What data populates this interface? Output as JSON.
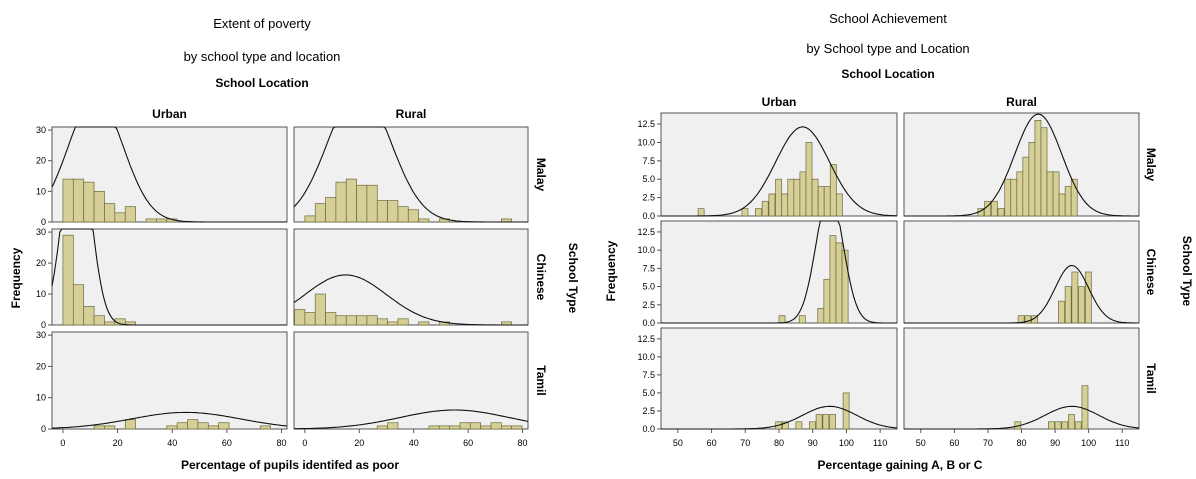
{
  "chart_data": [
    {
      "type": "histogram",
      "title_lines": [
        "Extent of poverty",
        "by school type and location"
      ],
      "column_header": "School Location",
      "row_header": "School Type",
      "columns": [
        "Urban",
        "Rural"
      ],
      "rows": [
        "Malay",
        "Chinese",
        "Tamil"
      ],
      "xlabel": "Percentage of pupils identifed as poor",
      "ylabel": "Frequency",
      "xlim": [
        -4,
        82
      ],
      "ylim": [
        0,
        31
      ],
      "xticks": [
        0,
        20,
        40,
        60,
        80
      ],
      "yticks": [
        0,
        10,
        20,
        30
      ],
      "bin_width": 3.8,
      "series": [
        {
          "row": "Malay",
          "col": "Urban",
          "bins": [
            [
              0,
              14
            ],
            [
              3.8,
              14
            ],
            [
              7.6,
              13
            ],
            [
              11.4,
              10
            ],
            [
              15.2,
              6
            ],
            [
              19,
              3
            ],
            [
              22.8,
              5
            ],
            [
              30.4,
              1
            ],
            [
              34.2,
              1
            ],
            [
              38,
              1
            ]
          ],
          "curve": {
            "mean": 12,
            "sd": 10,
            "n": 270
          }
        },
        {
          "row": "Malay",
          "col": "Rural",
          "bins": [
            [
              0,
              2
            ],
            [
              3.8,
              6
            ],
            [
              7.6,
              8
            ],
            [
              11.4,
              13
            ],
            [
              15.2,
              14
            ],
            [
              19,
              12
            ],
            [
              22.8,
              12
            ],
            [
              26.6,
              7
            ],
            [
              30.4,
              7
            ],
            [
              34.2,
              5
            ],
            [
              38,
              4
            ],
            [
              41.8,
              1
            ],
            [
              49.4,
              1
            ],
            [
              72.2,
              1
            ]
          ],
          "curve": {
            "mean": 20,
            "sd": 11.5,
            "n": 330
          }
        },
        {
          "row": "Chinese",
          "col": "Urban",
          "bins": [
            [
              0,
              29
            ],
            [
              3.8,
              13
            ],
            [
              7.6,
              6
            ],
            [
              11.4,
              3
            ],
            [
              15.2,
              1
            ],
            [
              19,
              2
            ],
            [
              22.8,
              1
            ]
          ],
          "curve": {
            "mean": 5,
            "sd": 5,
            "n": 210
          }
        },
        {
          "row": "Chinese",
          "col": "Rural",
          "bins": [
            [
              -3.8,
              5
            ],
            [
              0,
              4
            ],
            [
              3.8,
              10
            ],
            [
              7.6,
              4
            ],
            [
              11.4,
              3
            ],
            [
              15.2,
              3
            ],
            [
              19,
              3
            ],
            [
              22.8,
              3
            ],
            [
              26.6,
              2
            ],
            [
              30.4,
              1
            ],
            [
              34.2,
              2
            ],
            [
              41.8,
              1
            ],
            [
              49.4,
              1
            ],
            [
              72.2,
              1
            ]
          ],
          "curve": {
            "mean": 15,
            "sd": 15,
            "n": 160
          }
        },
        {
          "row": "Tamil",
          "col": "Urban",
          "bins": [
            [
              11.4,
              1
            ],
            [
              15.2,
              1
            ],
            [
              22.8,
              3
            ],
            [
              38,
              1
            ],
            [
              41.8,
              2
            ],
            [
              45.6,
              3
            ],
            [
              49.4,
              2
            ],
            [
              53.2,
              1
            ],
            [
              57,
              2
            ],
            [
              72.2,
              1
            ]
          ],
          "curve": {
            "mean": 45,
            "sd": 20,
            "n": 70
          }
        },
        {
          "row": "Tamil",
          "col": "Rural",
          "bins": [
            [
              26.6,
              1
            ],
            [
              30.4,
              2
            ],
            [
              45.6,
              1
            ],
            [
              49.4,
              1
            ],
            [
              53.2,
              1
            ],
            [
              57,
              2
            ],
            [
              60.8,
              2
            ],
            [
              64.6,
              1
            ],
            [
              68.4,
              2
            ],
            [
              72.2,
              1
            ],
            [
              76,
              1
            ]
          ],
          "curve": {
            "mean": 55,
            "sd": 20,
            "n": 80
          }
        }
      ]
    },
    {
      "type": "histogram",
      "title_lines": [
        "School Achievement",
        "by School type and Location"
      ],
      "column_header": "School Location",
      "row_header": "School Type",
      "columns": [
        "Urban",
        "Rural"
      ],
      "rows": [
        "Malay",
        "Chinese",
        "Tamil"
      ],
      "xlabel": "Percentage gaining A, B or C",
      "ylabel": "Frequency",
      "xlim": [
        45,
        115
      ],
      "ylim": [
        0,
        14
      ],
      "xticks": [
        50,
        60,
        70,
        80,
        90,
        100,
        110
      ],
      "yticks": [
        0.0,
        2.5,
        5.0,
        7.5,
        10.0,
        12.5
      ],
      "bin_width": 1.8,
      "series": [
        {
          "row": "Malay",
          "col": "Urban",
          "bins": [
            [
              56,
              1
            ],
            [
              69,
              1
            ],
            [
              73,
              1
            ],
            [
              75,
              2
            ],
            [
              77,
              3
            ],
            [
              79,
              5
            ],
            [
              80.8,
              3
            ],
            [
              82.6,
              5
            ],
            [
              84.4,
              5
            ],
            [
              86.2,
              6
            ],
            [
              88,
              10
            ],
            [
              89.8,
              5
            ],
            [
              91.6,
              4
            ],
            [
              93.4,
              4
            ],
            [
              95.2,
              7
            ],
            [
              97,
              3
            ]
          ],
          "curve": {
            "mean": 87,
            "sd": 8,
            "n": 135
          }
        },
        {
          "row": "Malay",
          "col": "Rural",
          "bins": [
            [
              67,
              1
            ],
            [
              69,
              2
            ],
            [
              71,
              2
            ],
            [
              73,
              1
            ],
            [
              75,
              5
            ],
            [
              76.8,
              5
            ],
            [
              78.6,
              6
            ],
            [
              80.4,
              8
            ],
            [
              82.2,
              10
            ],
            [
              84,
              13
            ],
            [
              85.8,
              12
            ],
            [
              87.6,
              6
            ],
            [
              89.4,
              6
            ],
            [
              91.2,
              3
            ],
            [
              93,
              4
            ],
            [
              94.8,
              5
            ]
          ],
          "curve": {
            "mean": 85,
            "sd": 7,
            "n": 135
          }
        },
        {
          "row": "Chinese",
          "col": "Urban",
          "bins": [
            [
              80,
              1
            ],
            [
              86,
              1
            ],
            [
              91.5,
              2
            ],
            [
              93.3,
              6
            ],
            [
              95.1,
              12
            ],
            [
              96.9,
              11
            ],
            [
              98.7,
              10
            ]
          ],
          "curve": {
            "mean": 95,
            "sd": 4,
            "n": 100
          }
        },
        {
          "row": "Chinese",
          "col": "Rural",
          "bins": [
            [
              79,
              1
            ],
            [
              81,
              1
            ],
            [
              83,
              1
            ],
            [
              91,
              3
            ],
            [
              93,
              5
            ],
            [
              95,
              7
            ],
            [
              97,
              5
            ],
            [
              99,
              7
            ]
          ],
          "curve": {
            "mean": 95,
            "sd": 5,
            "n": 55
          }
        },
        {
          "row": "Tamil",
          "col": "Urban",
          "bins": [
            [
              79,
              1
            ],
            [
              81,
              1
            ],
            [
              85,
              1
            ],
            [
              89,
              1
            ],
            [
              91,
              2
            ],
            [
              93,
              2
            ],
            [
              95,
              2
            ],
            [
              99,
              5
            ]
          ],
          "curve": {
            "mean": 95,
            "sd": 8,
            "n": 35
          }
        },
        {
          "row": "Tamil",
          "col": "Rural",
          "bins": [
            [
              78,
              1
            ],
            [
              88,
              1
            ],
            [
              90,
              1
            ],
            [
              92,
              1
            ],
            [
              94,
              2
            ],
            [
              96,
              1
            ],
            [
              98,
              6
            ]
          ],
          "curve": {
            "mean": 95,
            "sd": 8,
            "n": 35
          }
        }
      ]
    }
  ]
}
